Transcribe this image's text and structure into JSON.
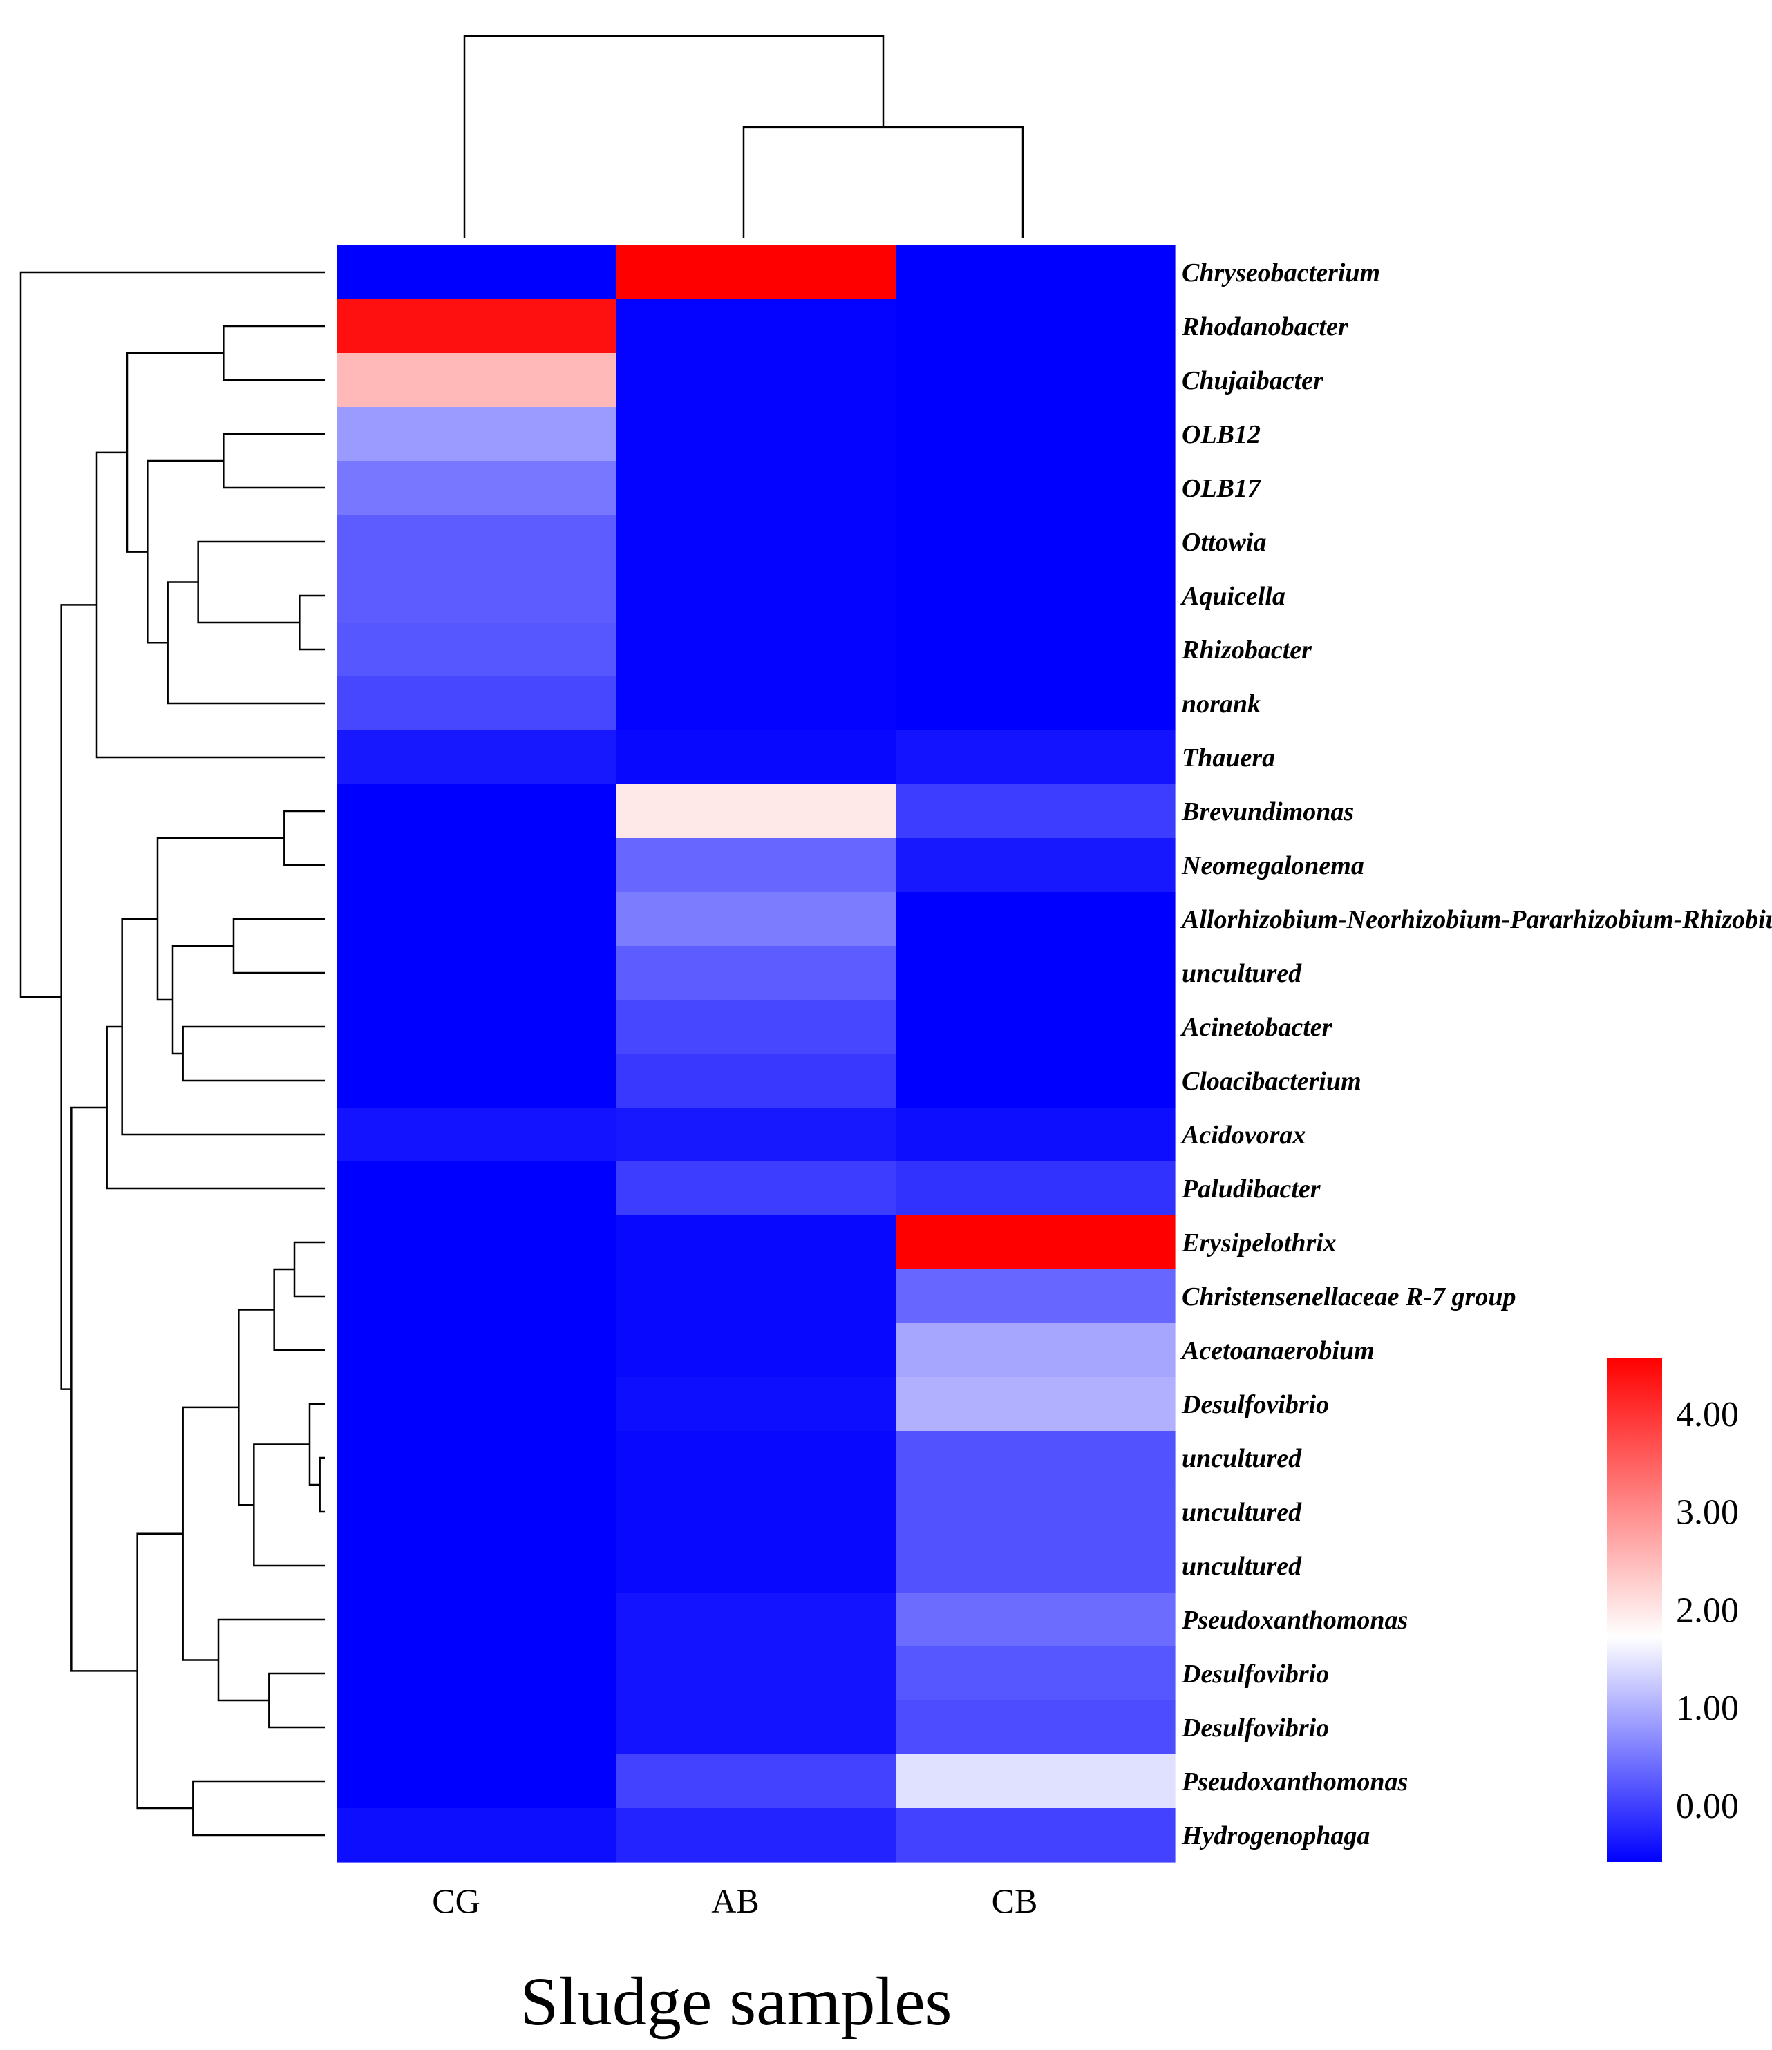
{
  "chart_data": {
    "type": "heatmap",
    "title": "",
    "xlabel": "Sludge samples",
    "ylabel": "",
    "columns": [
      "CG",
      "AB",
      "CB"
    ],
    "rows": [
      "Chryseobacterium",
      "Rhodanobacter",
      "Chujaibacter",
      "OLB12",
      "OLB17",
      "Ottowia",
      "Aquicella",
      "Rhizobacter",
      "norank",
      "Thauera",
      "Brevundimonas",
      "Neomegalonema",
      "Allorhizobium-Neorhizobium-Pararhizobium-Rhizobium",
      "uncultured",
      "Acinetobacter",
      "Cloacibacterium",
      "Acidovorax",
      "Paludibacter",
      "Erysipelothrix",
      "Christensenellaceae R-7 group",
      "Acetoanaerobium",
      "Desulfovibrio",
      "uncultured",
      "uncultured",
      "uncultured",
      "Pseudoxanthomonas",
      "Desulfovibrio",
      "Desulfovibrio",
      "Pseudoxanthomonas",
      "Hydrogenophaga"
    ],
    "values": [
      [
        -0.58,
        4.57,
        -0.58
      ],
      [
        4.4,
        -0.55,
        -0.58
      ],
      [
        2.6,
        -0.55,
        -0.58
      ],
      [
        0.9,
        -0.55,
        -0.58
      ],
      [
        0.55,
        -0.55,
        -0.58
      ],
      [
        0.3,
        -0.55,
        -0.58
      ],
      [
        0.3,
        -0.55,
        -0.58
      ],
      [
        0.25,
        -0.55,
        -0.58
      ],
      [
        0.1,
        -0.55,
        -0.58
      ],
      [
        -0.35,
        -0.5,
        -0.4
      ],
      [
        -0.58,
        2.1,
        0.0
      ],
      [
        -0.58,
        0.4,
        -0.35
      ],
      [
        -0.58,
        0.6,
        -0.58
      ],
      [
        -0.58,
        0.3,
        -0.58
      ],
      [
        -0.58,
        0.1,
        -0.58
      ],
      [
        -0.58,
        -0.05,
        -0.58
      ],
      [
        -0.4,
        -0.35,
        -0.45
      ],
      [
        -0.58,
        0.0,
        -0.1
      ],
      [
        -0.58,
        -0.5,
        4.57
      ],
      [
        -0.58,
        -0.5,
        0.4
      ],
      [
        -0.58,
        -0.5,
        1.0
      ],
      [
        -0.58,
        -0.45,
        1.1
      ],
      [
        -0.58,
        -0.5,
        0.2
      ],
      [
        -0.58,
        -0.5,
        0.2
      ],
      [
        -0.58,
        -0.5,
        0.2
      ],
      [
        -0.58,
        -0.4,
        0.45
      ],
      [
        -0.58,
        -0.4,
        0.25
      ],
      [
        -0.58,
        -0.4,
        0.15
      ],
      [
        -0.58,
        0.05,
        1.55
      ],
      [
        -0.45,
        -0.25,
        0.05
      ]
    ],
    "color_scale": {
      "min": -0.58,
      "mid": 1.85,
      "max": 4.57,
      "colors": [
        "#0000ff",
        "#ffffff",
        "#ff0000"
      ],
      "ticks": [
        {
          "value": 4.0,
          "label": "4.00"
        },
        {
          "value": 3.0,
          "label": "3.00"
        },
        {
          "value": 2.0,
          "label": "2.00"
        },
        {
          "value": 1.0,
          "label": "1.00"
        },
        {
          "value": 0.0,
          "label": "0.00"
        }
      ]
    },
    "col_dendrogram": [
      {
        "a": 1,
        "b": 2,
        "h": 0.55
      },
      {
        "a": 0,
        "b": "1+2",
        "h": 1.0
      }
    ],
    "row_dendrogram": [
      {
        "a": 6,
        "b": 7,
        "h": 0.05
      },
      {
        "a": 5,
        "b": "6+7",
        "h": 0.25
      },
      {
        "a": 3,
        "b": 4,
        "h": 0.2
      },
      {
        "a": "5+6+7",
        "b": 8,
        "h": 0.31
      },
      {
        "a": "3+4",
        "b": "5+6+7+8",
        "h": 0.35
      },
      {
        "a": 1,
        "b": 2,
        "h": 0.2
      },
      {
        "a": "1+2",
        "b": "3..8",
        "h": 0.39
      },
      {
        "a": "1..8",
        "b": 9,
        "h": 0.45
      },
      {
        "a": 10,
        "b": 11,
        "h": 0.08
      },
      {
        "a": 12,
        "b": 13,
        "h": 0.18
      },
      {
        "a": 14,
        "b": 15,
        "h": 0.28
      },
      {
        "a": "12+13",
        "b": "14+15",
        "h": 0.3
      },
      {
        "a": "10+11",
        "b": "12..15",
        "h": 0.33
      },
      {
        "a": "10..15",
        "b": 16,
        "h": 0.4
      },
      {
        "a": "10..16",
        "b": 17,
        "h": 0.43
      },
      {
        "a": 22,
        "b": 23,
        "h": 0.01
      },
      {
        "a": "22+23",
        "b": 21,
        "h": 0.03
      },
      {
        "a": "21..23",
        "b": 24,
        "h": 0.14
      },
      {
        "a": 18,
        "b": 19,
        "h": 0.06
      },
      {
        "a": "18+19",
        "b": 20,
        "h": 0.1
      },
      {
        "a": "18..20",
        "b": "21..24",
        "h": 0.17
      },
      {
        "a": 26,
        "b": 27,
        "h": 0.11
      },
      {
        "a": 25,
        "b": "26+27",
        "h": 0.21
      },
      {
        "a": "18..24",
        "b": "25..27",
        "h": 0.28
      },
      {
        "a": 28,
        "b": 29,
        "h": 0.26
      },
      {
        "a": "18..27",
        "b": "28+29",
        "h": 0.37
      },
      {
        "a": "10..17",
        "b": "18..29",
        "h": 0.5
      },
      {
        "a": "1..9",
        "b": "10..29",
        "h": 0.52
      },
      {
        "a": 0,
        "b": "1..29",
        "h": 0.6
      }
    ]
  }
}
